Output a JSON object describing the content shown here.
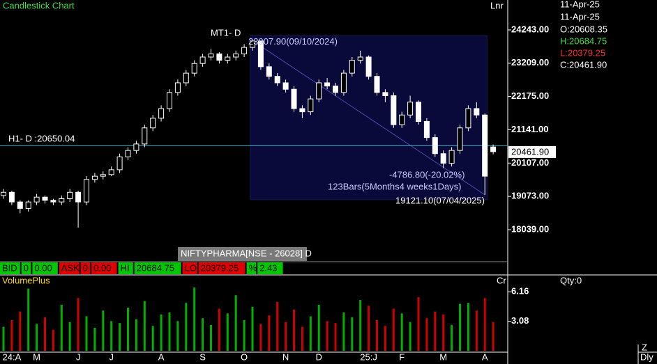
{
  "header": {
    "title": "Candlestick Chart",
    "scale_mode": "Lnr"
  },
  "info_panel": {
    "date1": "11-Apr-25",
    "date2": "11-Apr-25",
    "open": "O:20608.35",
    "high": "H:20684.75",
    "low": "L:20379.25",
    "close": "C:20461.90",
    "qty": "Qty:0"
  },
  "symbol": "NIFTYPHARMA[NSE - 26028] D",
  "quote_bar": [
    {
      "text": "BID",
      "color": "#00c800"
    },
    {
      "text": "0",
      "color": "#00c800"
    },
    {
      "text": "0.00",
      "color": "#00c800"
    },
    {
      "text": "ASK",
      "color": "#e00000"
    },
    {
      "text": "0",
      "color": "#e00000"
    },
    {
      "text": "0.00",
      "color": "#e00000"
    },
    {
      "text": "HI",
      "color": "#00c800"
    },
    {
      "text": "20684.75",
      "color": "#00c800"
    },
    {
      "text": "LO",
      "color": "#e00000"
    },
    {
      "text": "20379.25",
      "color": "#e00000"
    },
    {
      "text": "%",
      "color": "#00c800"
    },
    {
      "text": "2.43",
      "color": "#00c800"
    }
  ],
  "footer": {
    "zoom": "Z",
    "period": "Dly"
  },
  "chart_data": [
    {
      "type": "candlestick",
      "color": "#ffffff",
      "categories": [
        null,
        "24:A",
        null,
        null,
        "M",
        null,
        null,
        null,
        null,
        "J",
        null,
        null,
        null,
        "J",
        null,
        null,
        null,
        null,
        null,
        "A",
        null,
        null,
        null,
        null,
        "S",
        null,
        null,
        null,
        null,
        "O",
        null,
        null,
        null,
        null,
        "N",
        null,
        null,
        null,
        "D",
        null,
        null,
        null,
        null,
        null,
        "25:J",
        null,
        null,
        null,
        "F",
        null,
        null,
        null,
        null,
        "M",
        null,
        null,
        null,
        null,
        "A",
        null
      ],
      "open": [
        19100,
        19200,
        18900,
        18700,
        18900,
        19050,
        18950,
        18900,
        19000,
        19200,
        18900,
        19600,
        19700,
        19750,
        19900,
        20300,
        20500,
        20700,
        21200,
        21500,
        21800,
        22300,
        22600,
        22900,
        23200,
        23400,
        23500,
        23300,
        23400,
        23500,
        23700,
        23900,
        23100,
        22800,
        22600,
        22400,
        21800,
        21700,
        22100,
        22600,
        22500,
        22300,
        22900,
        23300,
        23400,
        22800,
        22300,
        22200,
        21300,
        21600,
        22000,
        21400,
        20900,
        20400,
        20100,
        20500,
        21200,
        21800,
        21600,
        20608.35
      ],
      "high": [
        19300,
        19250,
        18950,
        18950,
        19150,
        19100,
        19000,
        19100,
        19300,
        19250,
        19700,
        19800,
        19850,
        20000,
        20400,
        20600,
        20800,
        21300,
        21600,
        21900,
        22400,
        22700,
        23000,
        23300,
        23500,
        23650,
        23550,
        23500,
        23600,
        23800,
        23907.9,
        23900,
        23200,
        22900,
        22700,
        22500,
        21900,
        22200,
        22700,
        22750,
        22600,
        23000,
        23400,
        23600,
        23450,
        22900,
        22400,
        22300,
        21700,
        22200,
        22050,
        21500,
        21000,
        20500,
        20600,
        21300,
        21900,
        22000,
        21650,
        20684.75
      ],
      "low": [
        19000,
        18800,
        18550,
        18600,
        18800,
        18850,
        18800,
        18800,
        18900,
        18100,
        18800,
        19500,
        19600,
        19700,
        19800,
        20200,
        20400,
        20600,
        21100,
        21400,
        21700,
        22200,
        22500,
        22800,
        23100,
        23300,
        23200,
        23200,
        23300,
        23400,
        23600,
        23000,
        22700,
        22500,
        22300,
        21700,
        21500,
        21600,
        22000,
        22400,
        22200,
        22200,
        22800,
        23200,
        22700,
        22200,
        22000,
        21200,
        21200,
        21500,
        21300,
        20800,
        20300,
        19950,
        20000,
        20400,
        21100,
        21500,
        19121.1,
        20379.25
      ],
      "close": [
        19200,
        18900,
        18700,
        18900,
        19050,
        18950,
        18900,
        19000,
        19200,
        18900,
        19600,
        19700,
        19750,
        19900,
        20300,
        20500,
        20700,
        21200,
        21500,
        21800,
        22300,
        22600,
        22900,
        23200,
        23400,
        23500,
        23300,
        23400,
        23500,
        23700,
        23900,
        23100,
        22800,
        22600,
        22400,
        21800,
        21700,
        22100,
        22600,
        22500,
        22300,
        22900,
        23300,
        23400,
        22800,
        22300,
        22200,
        21300,
        21600,
        22000,
        21400,
        20900,
        20400,
        20100,
        20500,
        21200,
        21800,
        21600,
        19700,
        20461.9
      ],
      "ylim": [
        17066,
        25172
      ],
      "yticks": [
        {
          "value": 24243,
          "label": "24243.00"
        },
        {
          "value": 23209,
          "label": "23209.00"
        },
        {
          "value": 22175,
          "label": "22175.00"
        },
        {
          "value": 21141,
          "label": "21141.00"
        },
        {
          "value": 20107,
          "label": "20107.00"
        },
        {
          "value": 19073,
          "label": "19073.00"
        },
        {
          "value": 18039,
          "label": "18039.00"
        }
      ],
      "last_price": {
        "value": 20461.9,
        "label": "20461.90"
      },
      "hline": {
        "value": 20650.04,
        "label": "H1- D :20650.04",
        "color": "#4fb3c8"
      },
      "peak_label": "MT1- D",
      "measure": {
        "start": {
          "value": 23907.9,
          "label": "23907.90(09/10/2024)"
        },
        "end": {
          "value": 19121.1,
          "label": "19121.10(07/04/2025)"
        },
        "change": "-4786.80(-20.02%)",
        "span": "123Bars(5Months4 weeks1Days)",
        "color": "#0a0a3a"
      }
    },
    {
      "type": "bar",
      "title": "VolumePlus",
      "unit_label": "Cr",
      "up_color": "#00b000",
      "down_color": "#d00000",
      "values": [
        2.5,
        3.2,
        4.1,
        6.5,
        2.8,
        3.5,
        2.2,
        4.8,
        3.0,
        5.5,
        3.6,
        2.4,
        4.2,
        3.1,
        2.9,
        4.5,
        3.3,
        5.2,
        2.6,
        3.8,
        4.0,
        3.1,
        5.0,
        6.6,
        3.4,
        2.7,
        4.4,
        3.9,
        5.8,
        3.2,
        4.6,
        2.8,
        3.7,
        5.1,
        3.0,
        4.3,
        2.5,
        3.6,
        4.8,
        3.1,
        2.9,
        4.0,
        3.5,
        5.3,
        4.7,
        3.2,
        2.6,
        4.4,
        3.9,
        3.0,
        5.6,
        3.4,
        4.1,
        3.8,
        2.7,
        4.9,
        5.0,
        4.2,
        5.5,
        3.0
      ],
      "ylim": [
        0,
        7.85
      ],
      "yticks": [
        6.16,
        3.08
      ]
    }
  ]
}
